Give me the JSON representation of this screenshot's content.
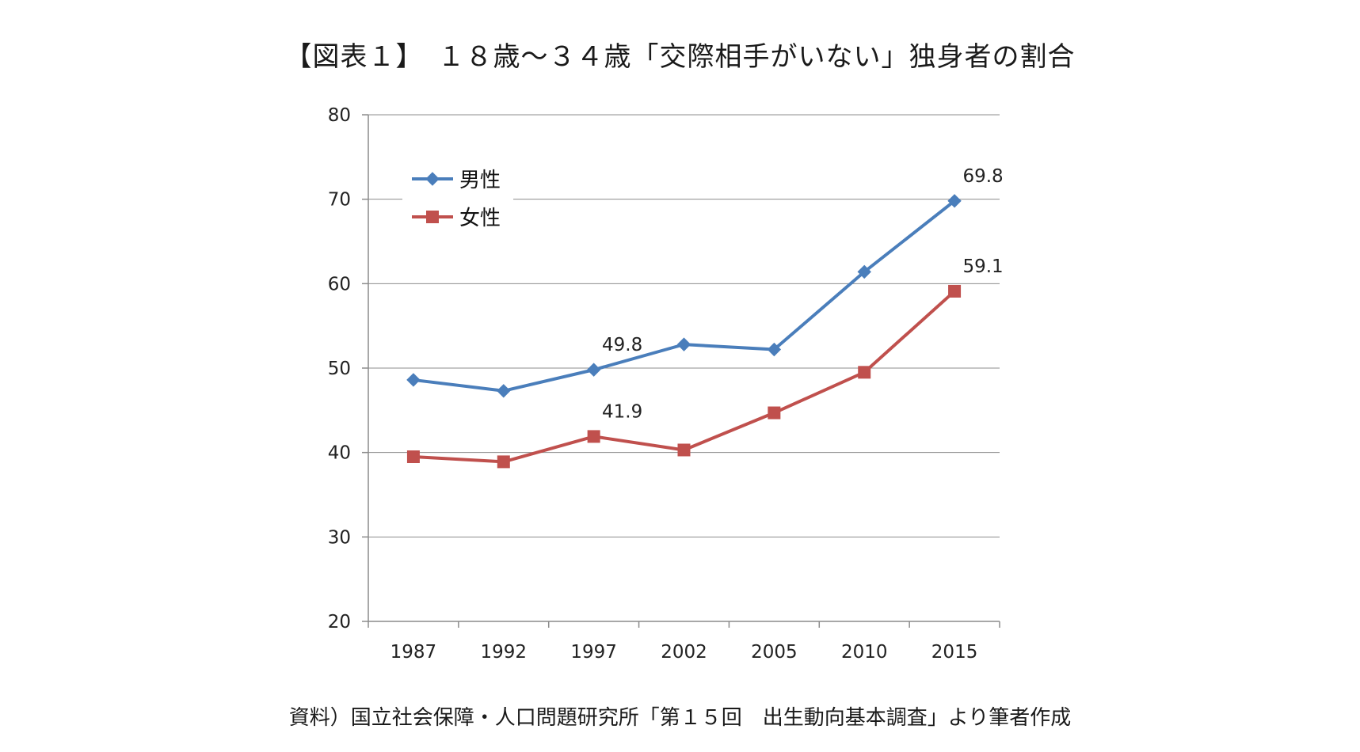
{
  "header": {
    "title": "【図表１】　１８歳～３４歳「交際相手がいない」独身者の割合"
  },
  "footer": {
    "source": "資料）国立社会保障・人口問題研究所「第１５回　出生動向基本調査」より筆者作成"
  },
  "chart_data": {
    "type": "line",
    "title": "",
    "xlabel": "",
    "ylabel": "",
    "categories": [
      "1987",
      "1992",
      "1997",
      "2002",
      "2005",
      "2010",
      "2015"
    ],
    "ylim": [
      20,
      80
    ],
    "yticks": [
      20,
      30,
      40,
      50,
      60,
      70,
      80
    ],
    "grid": true,
    "legend_position": "top-left",
    "series": [
      {
        "name": "男性",
        "color": "#4a7ebb",
        "marker": "diamond",
        "values": [
          48.6,
          47.3,
          49.8,
          52.8,
          52.2,
          61.4,
          69.8
        ],
        "labels": [
          null,
          null,
          "49.8",
          null,
          null,
          null,
          "69.8"
        ]
      },
      {
        "name": "女性",
        "color": "#c0504d",
        "marker": "square",
        "values": [
          39.5,
          38.9,
          41.9,
          40.3,
          44.7,
          49.5,
          59.1
        ],
        "labels": [
          null,
          null,
          "41.9",
          null,
          null,
          null,
          "59.1"
        ]
      }
    ]
  }
}
